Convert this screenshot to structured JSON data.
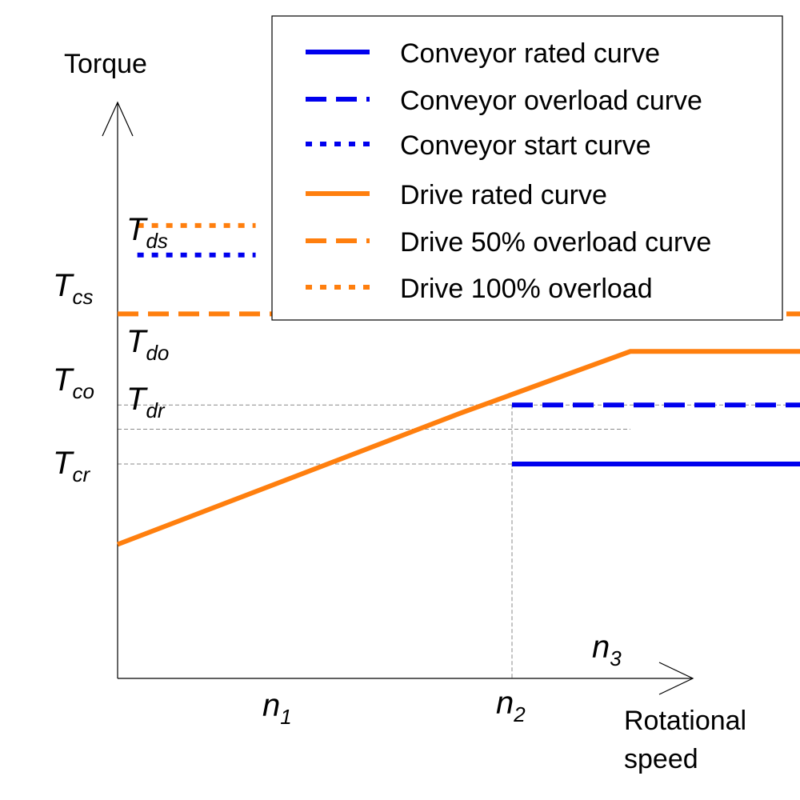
{
  "chart_data": {
    "type": "line",
    "xlabel": [
      "Rotational",
      "speed"
    ],
    "ylabel": "Torque",
    "x_ticks": [
      {
        "id": "n1",
        "base": "n",
        "sub": "1",
        "x": 1
      },
      {
        "id": "n2",
        "base": "n",
        "sub": "2",
        "x": 2
      },
      {
        "id": "n3",
        "base": "n",
        "sub": "3",
        "x": 2.3
      }
    ],
    "y_ticks": [
      {
        "id": "Tds",
        "base": "T",
        "sub": "ds",
        "y": 9.2
      },
      {
        "id": "Tcs",
        "base": "T",
        "sub": "cs",
        "y": 8.7
      },
      {
        "id": "Tdo",
        "base": "T",
        "sub": "do",
        "y": 7.4
      },
      {
        "id": "Tco",
        "base": "T",
        "sub": "co",
        "y": 6.5
      },
      {
        "id": "Tdr",
        "base": "T",
        "sub": "dr",
        "y": 5.5
      },
      {
        "id": "Tcr",
        "base": "T",
        "sub": "cr",
        "y": 4.0
      }
    ],
    "series": [
      {
        "name": "Conveyor rated curve",
        "color": "#0000ee",
        "dash": "solid",
        "x": [
          1,
          2
        ],
        "y": [
          4.0,
          4.0
        ]
      },
      {
        "name": "Conveyor overload curve",
        "color": "#0000ee",
        "dash": "dashed",
        "x": [
          1,
          2
        ],
        "y": [
          5.1,
          5.1
        ]
      },
      {
        "name": "Conveyor start curve",
        "color": "#0000ee",
        "dash": "dotted",
        "x": [
          0.05,
          0.35
        ],
        "y": [
          7.9,
          7.9
        ]
      },
      {
        "name": "Drive rated curve",
        "color": "#ff7f0e",
        "dash": "solid",
        "x": [
          0,
          0.87,
          1.3,
          2.03,
          2.3
        ],
        "y": [
          2.5,
          4.95,
          6.1,
          6.1,
          3.8
        ]
      },
      {
        "name": "Drive 50% overload curve",
        "color": "#ff7f0e",
        "dash": "dashed",
        "x": [
          0,
          2,
          2.3
        ],
        "y": [
          6.8,
          6.8,
          4.6
        ]
      },
      {
        "name": "Drive 100% overload",
        "color": "#ff7f0e",
        "dash": "dotted",
        "x": [
          0.05,
          0.35
        ],
        "y": [
          8.45,
          8.45
        ]
      }
    ],
    "legend_position": "top-right",
    "grid": false
  }
}
